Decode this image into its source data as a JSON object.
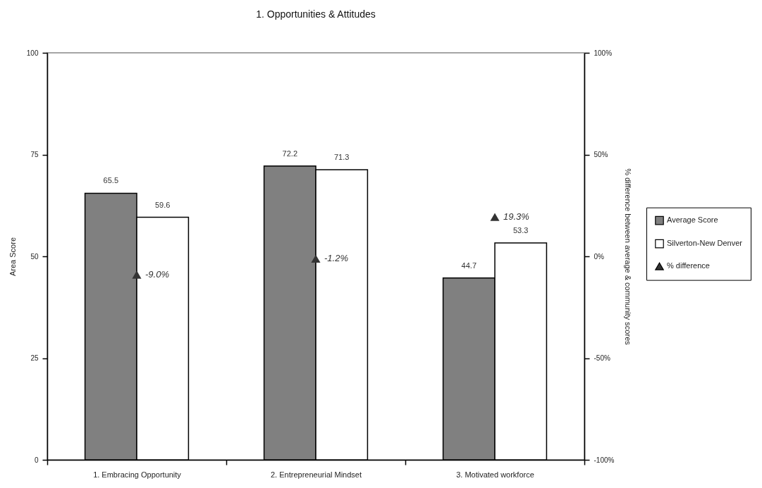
{
  "chart_data": {
    "type": "bar",
    "title": "1. Opportunities & Attitudes",
    "ylabel": "Area Score",
    "y2label": "% difference between average & community scores",
    "categories": [
      "1. Embracing Opportunity",
      "2. Entrepreneurial Mindset",
      "3. Motivated workforce"
    ],
    "series": [
      {
        "name": "Average Score",
        "color": "#808080",
        "values": [
          65.5,
          72.2,
          44.7
        ],
        "value_labels": [
          "65.5",
          "72.2",
          "44.7"
        ]
      },
      {
        "name": "Silverton-New Denver",
        "color": "#ffffff",
        "values": [
          59.6,
          71.3,
          53.3
        ],
        "value_labels": [
          "59.6",
          "71.3",
          "53.3"
        ]
      },
      {
        "name": "% difference",
        "type": "scatter",
        "axis": "y2",
        "marker": "triangle",
        "color": "#333333",
        "values": [
          -9.0,
          -1.2,
          19.3
        ],
        "value_labels": [
          "-9.0%",
          "-1.2%",
          "19.3%"
        ]
      }
    ],
    "ylim": [
      0,
      100
    ],
    "yticks": [
      0,
      25,
      50,
      75,
      100
    ],
    "y2lim": [
      -100,
      100
    ],
    "y2ticks": [
      {
        "value": -100,
        "label": "-100%"
      },
      {
        "value": -50,
        "label": "-50%"
      },
      {
        "value": 0,
        "label": "0%"
      },
      {
        "value": 50,
        "label": "50%"
      },
      {
        "value": 100,
        "label": "100%"
      }
    ],
    "legend": "right"
  }
}
